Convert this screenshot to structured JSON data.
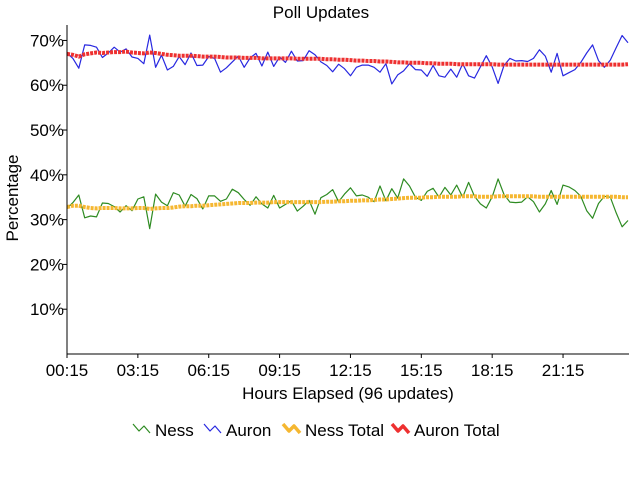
{
  "chart_data": {
    "type": "line",
    "title": "Poll Updates",
    "xlabel": "Hours Elapsed (96 updates)",
    "ylabel": "Percentage",
    "x_ticks": [
      "00:15",
      "03:15",
      "06:15",
      "09:15",
      "12:15",
      "15:15",
      "18:15",
      "21:15"
    ],
    "y_ticks": [
      "10%",
      "20%",
      "30%",
      "40%",
      "50%",
      "60%",
      "70%"
    ],
    "ylim": [
      0,
      73
    ],
    "x_count": 96,
    "grid": false,
    "legend_position": "bottom",
    "series": [
      {
        "name": "Ness",
        "color": "#2e8b22",
        "values": [
          32.5,
          33.8,
          35.5,
          30.4,
          30.8,
          30.6,
          33.7,
          33.6,
          32.9,
          31.7,
          33.1,
          32.0,
          34.6,
          35.1,
          28.0,
          35.7,
          33.9,
          33.1,
          36.0,
          35.5,
          33.0,
          35.6,
          34.7,
          32.4,
          35.3,
          35.3,
          34.1,
          34.6,
          36.8,
          36.0,
          34.5,
          33.2,
          35.1,
          33.5,
          32.6,
          35.4,
          32.6,
          33.4,
          34.2,
          31.9,
          33.0,
          34.3,
          31.2,
          34.9,
          35.6,
          36.7,
          34.0,
          35.7,
          37.1,
          35.3,
          35.5,
          35.0,
          34.0,
          37.5,
          34.2,
          36.9,
          34.8,
          39.1,
          37.5,
          35.0,
          34.3,
          36.3,
          37.0,
          35.0,
          37.2,
          35.5,
          37.7,
          35.0,
          38.3,
          35.2,
          33.5,
          32.6,
          35.1,
          39.1,
          35.6,
          33.9,
          33.8,
          33.9,
          35.1,
          34.0,
          31.7,
          33.5,
          36.5,
          33.4,
          37.7,
          37.3,
          36.5,
          35.2,
          32.0,
          30.3,
          33.6,
          35.2,
          35.0,
          31.5,
          28.4,
          29.8
        ]
      },
      {
        "name": "Auron",
        "color": "#2828e0",
        "values": [
          67.2,
          66.0,
          63.8,
          69.0,
          68.9,
          68.5,
          66.2,
          67.2,
          68.5,
          67.4,
          68.1,
          66.3,
          66.0,
          64.8,
          71.2,
          64.0,
          66.7,
          63.4,
          64.2,
          66.4,
          64.6,
          67.2,
          64.4,
          64.5,
          66.4,
          66.0,
          62.9,
          63.9,
          65.2,
          66.5,
          64.0,
          66.1,
          67.1,
          64.3,
          67.4,
          64.2,
          66.3,
          65.1,
          67.6,
          65.4,
          65.5,
          67.7,
          66.8,
          65.2,
          64.4,
          63.0,
          64.7,
          63.7,
          62.1,
          64.0,
          64.5,
          64.5,
          64.0,
          62.9,
          64.8,
          60.3,
          62.3,
          63.2,
          64.8,
          63.5,
          63.4,
          62.0,
          64.4,
          62.1,
          61.8,
          63.6,
          61.8,
          64.8,
          62.1,
          61.6,
          64.1,
          66.6,
          64.1,
          60.4,
          64.4,
          66.0,
          65.4,
          65.5,
          65.3,
          66.0,
          67.9,
          66.5,
          62.9,
          67.1,
          62.1,
          62.8,
          63.5,
          65.1,
          67.2,
          69.0,
          65.5,
          64.0,
          65.6,
          68.4,
          71.1,
          69.5
        ]
      },
      {
        "name": "Ness Total",
        "color": "#f5b731",
        "values": [
          32.8,
          33.1,
          33.1,
          32.8,
          32.6,
          32.5,
          32.6,
          32.6,
          32.6,
          32.5,
          32.5,
          32.5,
          32.6,
          32.6,
          32.4,
          32.5,
          32.6,
          32.6,
          32.7,
          32.9,
          33.0,
          33.0,
          33.1,
          33.1,
          33.2,
          33.3,
          33.4,
          33.5,
          33.6,
          33.7,
          33.7,
          33.7,
          33.8,
          33.8,
          33.8,
          33.9,
          33.9,
          33.9,
          33.9,
          33.9,
          33.9,
          33.9,
          33.9,
          33.9,
          34.0,
          34.0,
          34.1,
          34.1,
          34.2,
          34.2,
          34.3,
          34.3,
          34.4,
          34.5,
          34.5,
          34.6,
          34.7,
          34.8,
          34.9,
          34.9,
          34.9,
          35.0,
          35.0,
          35.1,
          35.1,
          35.1,
          35.1,
          35.2,
          35.2,
          35.2,
          35.1,
          35.1,
          35.1,
          35.2,
          35.2,
          35.2,
          35.2,
          35.2,
          35.2,
          35.2,
          35.1,
          35.1,
          35.1,
          35.1,
          35.1,
          35.1,
          35.1,
          35.1,
          35.1,
          35.1,
          35.1,
          35.1,
          35.1,
          35.1,
          35.0,
          35.0
        ]
      },
      {
        "name": "Auron Total",
        "color": "#ee3030",
        "values": [
          67.0,
          66.8,
          66.4,
          66.9,
          67.1,
          67.3,
          67.2,
          67.3,
          67.4,
          67.4,
          67.5,
          67.3,
          67.2,
          67.1,
          67.3,
          67.2,
          67.0,
          66.8,
          66.7,
          66.6,
          66.6,
          66.6,
          66.5,
          66.4,
          66.4,
          66.4,
          66.3,
          66.2,
          66.2,
          66.2,
          66.1,
          66.1,
          66.1,
          66.0,
          66.0,
          66.0,
          66.0,
          66.0,
          66.0,
          65.9,
          65.9,
          65.9,
          65.9,
          65.9,
          65.8,
          65.8,
          65.7,
          65.7,
          65.6,
          65.5,
          65.5,
          65.4,
          65.4,
          65.3,
          65.3,
          65.2,
          65.1,
          65.1,
          65.0,
          65.0,
          65.0,
          64.9,
          64.9,
          64.8,
          64.8,
          64.8,
          64.7,
          64.7,
          64.7,
          64.7,
          64.7,
          64.7,
          64.7,
          64.6,
          64.6,
          64.6,
          64.6,
          64.6,
          64.6,
          64.6,
          64.6,
          64.6,
          64.6,
          64.6,
          64.6,
          64.6,
          64.6,
          64.6,
          64.6,
          64.6,
          64.6,
          64.6,
          64.6,
          64.6,
          64.6,
          64.7
        ]
      }
    ]
  }
}
